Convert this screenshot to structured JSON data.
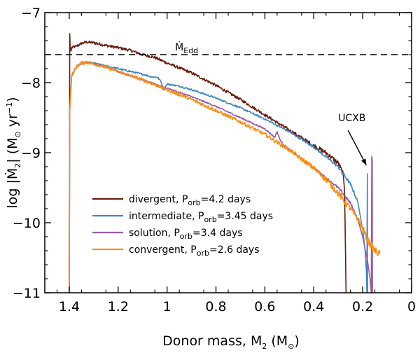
{
  "chart_data": {
    "type": "line",
    "xlabel": {
      "main": "Donor mass, M",
      "sub": "2",
      "unit_open": " (M",
      "unit_sym": "⊙",
      "unit_close": ")"
    },
    "ylabel": {
      "lead": "log |",
      "mdot": "Ṁ",
      "sub": "2",
      "mid": "| (M",
      "sym": "⊙",
      "mid2": " yr",
      "sup": "−1",
      "close": ")"
    },
    "xlim": [
      1.5,
      0.0
    ],
    "ylim": [
      -11,
      -7
    ],
    "x_ticks": [
      1.4,
      1.2,
      1,
      0.8,
      0.6,
      0.4,
      0.2,
      0
    ],
    "x_tick_labels": [
      "1.4",
      "1.2",
      "1",
      "0.8",
      "0.6",
      "0.4",
      "0.2",
      "0"
    ],
    "y_ticks": [
      -7,
      -8,
      -9,
      -10,
      -11
    ],
    "y_tick_labels": [
      "−7",
      "−8",
      "−9",
      "−10",
      "−11"
    ],
    "reference_line": {
      "y": -7.6,
      "label_main": "Ṁ",
      "label_sub": "Edd",
      "label_x": 0.92
    },
    "annotation": {
      "text": "UCXB",
      "text_x": 0.3,
      "text_y": -8.55,
      "arrow_from": [
        0.26,
        -8.68
      ],
      "arrow_to": [
        0.185,
        -9.18
      ]
    },
    "series": [
      {
        "name": "divergent",
        "legend_lead": "divergent, P",
        "legend_sub": "orb",
        "legend_tail": "=4.2 days",
        "color": "#6b1a0a",
        "noise": 0.02,
        "x": [
          1.4,
          1.398,
          1.396,
          1.393,
          1.39,
          1.37,
          1.35,
          1.33,
          1.3,
          1.25,
          1.2,
          1.15,
          1.1,
          1.05,
          1.0,
          0.9,
          0.8,
          0.7,
          0.6,
          0.5,
          0.4,
          0.35,
          0.3,
          0.28,
          0.275,
          0.272,
          0.27,
          0.268
        ],
        "y": [
          -11.0,
          -7.3,
          -7.5,
          -7.55,
          -7.5,
          -7.48,
          -7.44,
          -7.42,
          -7.43,
          -7.47,
          -7.5,
          -7.54,
          -7.6,
          -7.64,
          -7.72,
          -7.86,
          -8.04,
          -8.24,
          -8.46,
          -8.68,
          -8.9,
          -9.0,
          -9.15,
          -9.3,
          -9.5,
          -10.0,
          -10.5,
          -11.0
        ]
      },
      {
        "name": "intermediate",
        "legend_lead": "intermediate, P",
        "legend_sub": "orb",
        "legend_tail": "=3.45 days",
        "color": "#3f88c0",
        "noise": 0.012,
        "x": [
          1.4,
          1.398,
          1.39,
          1.37,
          1.35,
          1.33,
          1.3,
          1.25,
          1.2,
          1.15,
          1.1,
          1.06,
          1.04,
          1.025,
          1.015,
          1.0,
          0.95,
          0.9,
          0.8,
          0.7,
          0.6,
          0.5,
          0.4,
          0.3,
          0.25,
          0.22,
          0.2,
          0.19,
          0.185,
          0.183,
          0.181,
          0.18
        ],
        "y": [
          -11.0,
          -8.4,
          -7.9,
          -7.77,
          -7.72,
          -7.71,
          -7.72,
          -7.76,
          -7.8,
          -7.84,
          -7.88,
          -7.92,
          -7.92,
          -7.98,
          -8.1,
          -8.02,
          -8.05,
          -8.1,
          -8.22,
          -8.36,
          -8.52,
          -8.7,
          -8.92,
          -9.2,
          -9.45,
          -9.7,
          -10.1,
          -10.4,
          -10.7,
          -11.0,
          -9.3,
          -11.0
        ]
      },
      {
        "name": "solution",
        "legend_lead": "solution, P",
        "legend_sub": "orb",
        "legend_tail": "=3.4 days",
        "color": "#9b5ba8",
        "noise": 0.01,
        "x": [
          1.4,
          1.398,
          1.39,
          1.37,
          1.35,
          1.33,
          1.3,
          1.25,
          1.2,
          1.1,
          1.0,
          0.9,
          0.8,
          0.7,
          0.6,
          0.56,
          0.55,
          0.54,
          0.53,
          0.5,
          0.4,
          0.3,
          0.25,
          0.22,
          0.2,
          0.18,
          0.17,
          0.165,
          0.163,
          0.161,
          0.16
        ],
        "y": [
          -11.0,
          -8.4,
          -7.9,
          -7.77,
          -7.72,
          -7.71,
          -7.73,
          -7.78,
          -7.84,
          -7.96,
          -8.08,
          -8.2,
          -8.34,
          -8.5,
          -8.66,
          -8.78,
          -8.7,
          -8.8,
          -8.86,
          -8.96,
          -9.22,
          -9.5,
          -9.72,
          -9.95,
          -10.2,
          -10.55,
          -10.8,
          -11.0,
          -9.05,
          -9.1,
          -11.0
        ]
      },
      {
        "name": "convergent",
        "legend_lead": "convergent, P",
        "legend_sub": "orb",
        "legend_tail": "=2.6 days",
        "color": "#ff8c10",
        "noise": 0.025,
        "x": [
          1.4,
          1.398,
          1.39,
          1.37,
          1.35,
          1.33,
          1.3,
          1.25,
          1.2,
          1.1,
          1.0,
          0.9,
          0.8,
          0.7,
          0.6,
          0.5,
          0.4,
          0.35,
          0.3,
          0.25,
          0.22,
          0.2,
          0.18,
          0.16,
          0.15,
          0.14,
          0.13
        ],
        "y": [
          -11.0,
          -8.4,
          -7.9,
          -7.77,
          -7.72,
          -7.71,
          -7.73,
          -7.78,
          -7.84,
          -7.96,
          -8.1,
          -8.24,
          -8.4,
          -8.56,
          -8.74,
          -8.96,
          -9.22,
          -9.38,
          -9.58,
          -9.8,
          -9.95,
          -10.08,
          -10.25,
          -10.35,
          -10.4,
          -10.42,
          -10.45
        ]
      }
    ]
  }
}
